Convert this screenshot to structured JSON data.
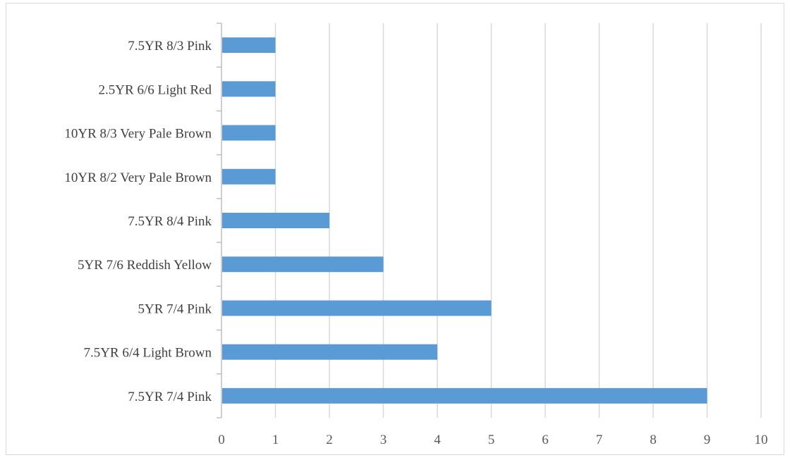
{
  "chart_data": {
    "type": "bar",
    "orientation": "horizontal",
    "title": "",
    "xlabel": "",
    "ylabel": "",
    "categories": [
      "7.5YR 8/3 Pink",
      "2.5YR 6/6 Light Red",
      "10YR 8/3 Very Pale Brown",
      "10YR 8/2 Very Pale Brown",
      "7.5YR 8/4 Pink",
      "5YR 7/6 Reddish Yellow",
      "5YR 7/4 Pink",
      "7.5YR 6/4 Light Brown",
      "7.5YR 7/4 Pink"
    ],
    "values": [
      1,
      1,
      1,
      1,
      2,
      3,
      5,
      4,
      9
    ],
    "xlim": [
      0,
      10
    ],
    "xticks": [
      "0",
      "1",
      "2",
      "3",
      "4",
      "5",
      "6",
      "7",
      "8",
      "9",
      "10"
    ],
    "grid": "vertical",
    "legend": "none",
    "colors": {
      "bar": "#5b9bd5",
      "grid": "#d9d9d9",
      "axis": "#bfbfbf",
      "frame": "#d9d9d9"
    }
  }
}
